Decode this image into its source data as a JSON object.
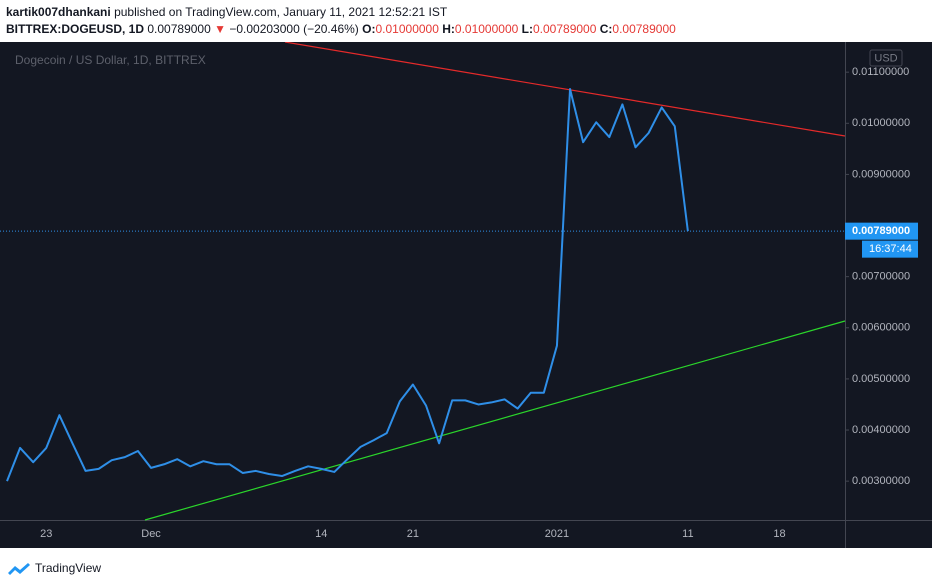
{
  "header": {
    "author": "kartik007dhankani",
    "published": "published on TradingView.com, January 11, 2021 12:52:21 IST",
    "symbol": "BITTREX:DOGEUSD, 1D",
    "last": "0.00789000",
    "change": "−0.00203000 (−20.46%)",
    "ohlc": [
      {
        "key": "O:",
        "value": "0.01000000"
      },
      {
        "key": "H:",
        "value": "0.01000000"
      },
      {
        "key": "L:",
        "value": "0.00789000"
      },
      {
        "key": "C:",
        "value": "0.00789000"
      }
    ]
  },
  "chart_data": {
    "type": "line",
    "title": "Dogecoin / US Dollar, 1D, BITTREX",
    "currency": "USD",
    "categories": [
      null,
      null,
      null,
      "23",
      null,
      null,
      null,
      null,
      null,
      null,
      null,
      "Dec",
      null,
      null,
      null,
      null,
      null,
      null,
      null,
      null,
      null,
      null,
      null,
      null,
      "14",
      null,
      null,
      null,
      null,
      null,
      null,
      "21",
      null,
      null,
      null,
      null,
      null,
      null,
      null,
      null,
      null,
      null,
      "2021",
      null,
      null,
      null,
      null,
      null,
      null,
      null,
      null,
      null,
      "11",
      null,
      null,
      null,
      null,
      null,
      null,
      "18",
      null,
      null,
      null,
      null,
      null
    ],
    "series": [
      {
        "name": "DOGEUSD",
        "color": "#2f8fe8",
        "values": [
          0.003,
          0.00365,
          0.00337,
          0.00365,
          0.00429,
          0.00374,
          0.0032,
          0.00324,
          0.00341,
          0.00347,
          0.00359,
          0.00326,
          0.00333,
          0.00343,
          0.00329,
          0.00339,
          0.00333,
          0.00333,
          0.00316,
          0.0032,
          0.00314,
          0.0031,
          0.0032,
          0.00329,
          0.00324,
          0.00318,
          0.00343,
          0.00367,
          0.0038,
          0.00394,
          0.00456,
          0.00489,
          0.00448,
          0.00374,
          0.00458,
          0.00458,
          0.0045,
          0.00454,
          0.0046,
          0.00442,
          0.00473,
          0.00473,
          0.00565,
          0.01067,
          0.00963,
          0.01002,
          0.00973,
          0.01037,
          0.00953,
          0.00981,
          0.01031,
          0.00994,
          0.00789,
          null,
          null,
          null,
          null,
          null,
          null,
          null,
          null,
          null,
          null,
          null,
          null
        ]
      }
    ],
    "ylim": [
      0.00224,
      0.01159
    ],
    "yticks": [
      {
        "value": 0.003,
        "label": "0.00300000"
      },
      {
        "value": 0.004,
        "label": "0.00400000"
      },
      {
        "value": 0.005,
        "label": "0.00500000"
      },
      {
        "value": 0.006,
        "label": "0.00600000"
      },
      {
        "value": 0.007,
        "label": "0.00700000"
      },
      {
        "value": 0.009,
        "label": "0.00900000"
      },
      {
        "value": 0.01,
        "label": "0.01000000"
      },
      {
        "value": 0.011,
        "label": "0.01100000"
      }
    ],
    "grid": false,
    "last_price_label": "0.00789000",
    "countdown": "16:37:44"
  },
  "footer": {
    "brand": "TradingView"
  }
}
